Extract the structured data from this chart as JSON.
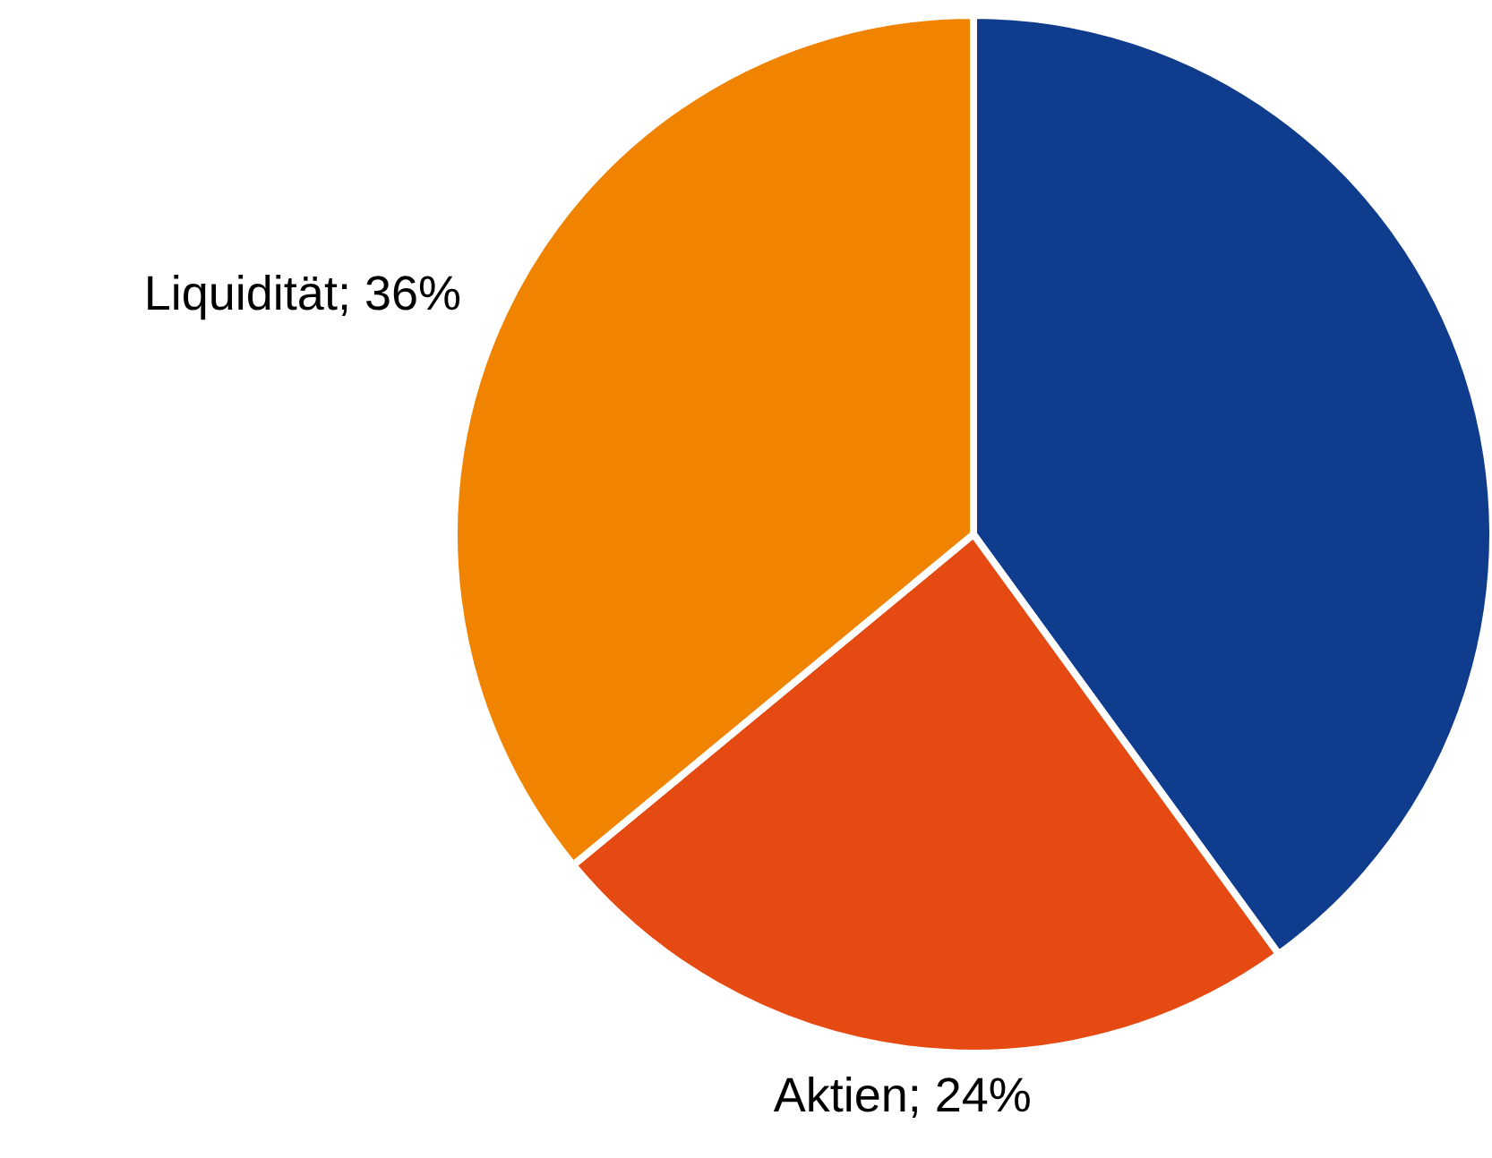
{
  "chart_data": {
    "type": "pie",
    "categories": [
      null,
      "Aktien",
      "Liquidität"
    ],
    "values": [
      40,
      24,
      36
    ],
    "colors": [
      "#0f3c8c",
      "#e54a12",
      "#f08300"
    ],
    "value_labels": [
      null,
      "24%",
      "36%"
    ]
  }
}
